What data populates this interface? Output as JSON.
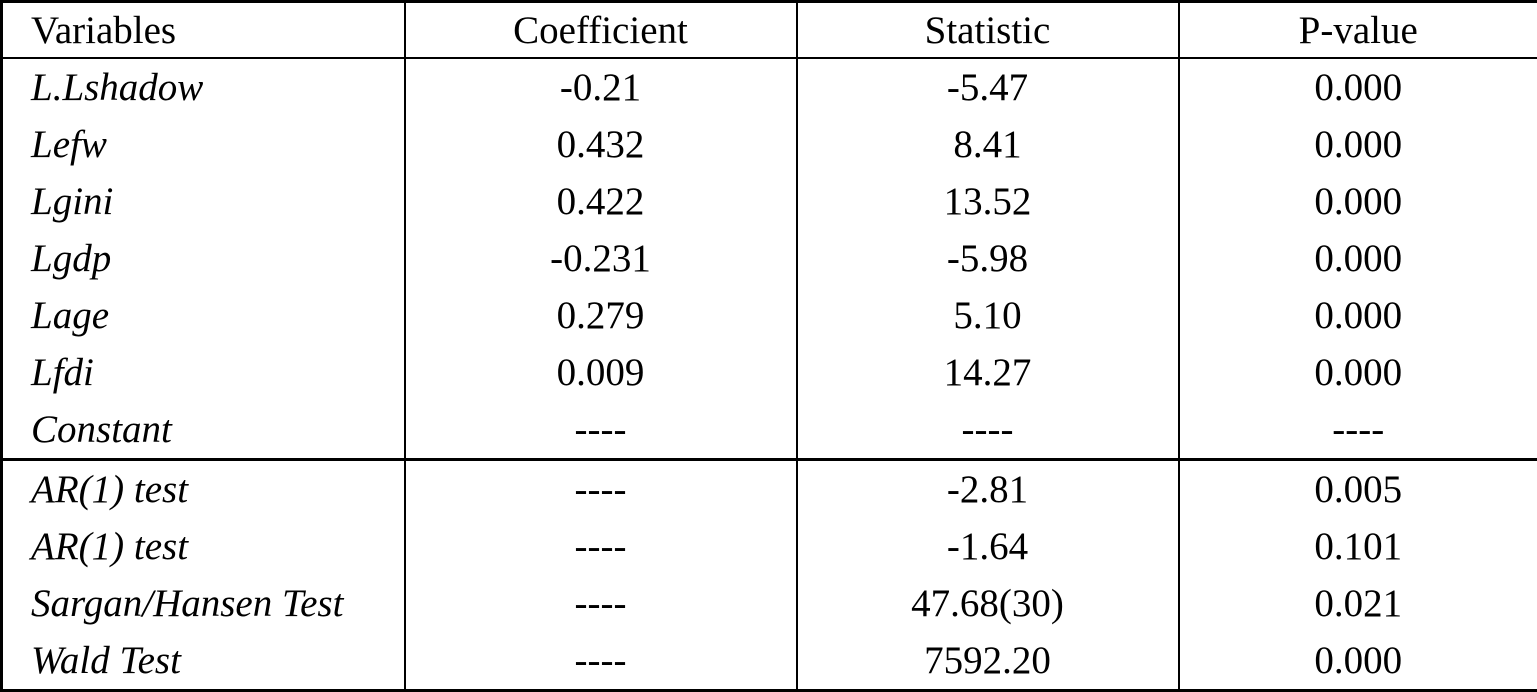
{
  "page": {
    "background_color": "#ffffff",
    "text_color": "#000000",
    "border_color": "#000000"
  },
  "table": {
    "columns": [
      "Variables",
      "Coefficient",
      "Statistic",
      "P-value"
    ],
    "placeholder_dashes": "----",
    "sections": [
      {
        "name": "coefficients",
        "rows": [
          {
            "variable": "L.Lshadow",
            "coefficient": "-0.21",
            "statistic": "-5.47",
            "p_value": "0.000"
          },
          {
            "variable": "Lefw",
            "coefficient": "0.432",
            "statistic": "8.41",
            "p_value": "0.000"
          },
          {
            "variable": "Lgini",
            "coefficient": "0.422",
            "statistic": "13.52",
            "p_value": "0.000"
          },
          {
            "variable": "Lgdp",
            "coefficient": "-0.231",
            "statistic": "-5.98",
            "p_value": "0.000"
          },
          {
            "variable": "Lage",
            "coefficient": "0.279",
            "statistic": "5.10",
            "p_value": "0.000"
          },
          {
            "variable": "Lfdi",
            "coefficient": "0.009",
            "statistic": "14.27",
            "p_value": "0.000"
          },
          {
            "variable": "Constant",
            "coefficient": "----",
            "statistic": "----",
            "p_value": "----"
          }
        ]
      },
      {
        "name": "diagnostic-tests",
        "rows": [
          {
            "variable": "AR(1) test",
            "coefficient": "----",
            "statistic": "-2.81",
            "p_value": "0.005"
          },
          {
            "variable": "AR(1) test",
            "coefficient": "----",
            "statistic": "-1.64",
            "p_value": "0.101"
          },
          {
            "variable": "Sargan/Hansen Test",
            "coefficient": "----",
            "statistic": "47.68(30)",
            "p_value": "0.021"
          },
          {
            "variable": "Wald Test",
            "coefficient": "----",
            "statistic": "7592.20",
            "p_value": "0.000"
          }
        ]
      }
    ]
  }
}
